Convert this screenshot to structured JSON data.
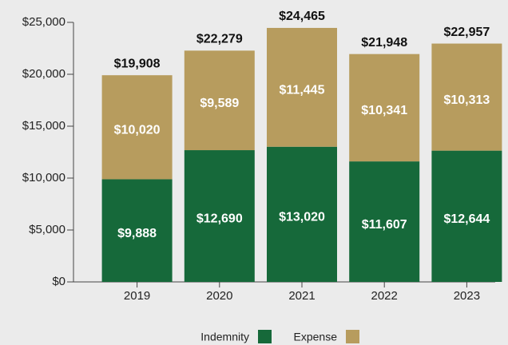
{
  "chart_data": {
    "type": "stacked_bar",
    "categories": [
      "2019",
      "2020",
      "2021",
      "2022",
      "2023"
    ],
    "series": [
      {
        "name": "Indemnity",
        "color": "#16693a",
        "values": [
          9888,
          12690,
          13020,
          11607,
          12644
        ],
        "value_labels": [
          "$9,888",
          "$12,690",
          "$13,020",
          "$11,607",
          "$12,644"
        ]
      },
      {
        "name": "Expense",
        "color": "#b79c5e",
        "values": [
          10020,
          9589,
          11445,
          10341,
          10313
        ],
        "value_labels": [
          "$10,020",
          "$9,589",
          "$11,445",
          "$10,341",
          "$10,313"
        ]
      }
    ],
    "totals": {
      "values": [
        19908,
        22279,
        24465,
        21948,
        22957
      ],
      "value_labels": [
        "$19,908",
        "$22,279",
        "$24,465",
        "$21,948",
        "$22,957"
      ]
    },
    "ylim": [
      0,
      25000
    ],
    "yticks": [
      {
        "value": 0,
        "label": "$0"
      },
      {
        "value": 5000,
        "label": "$5,000"
      },
      {
        "value": 10000,
        "label": "$10,000"
      },
      {
        "value": 15000,
        "label": "$15,000"
      },
      {
        "value": 20000,
        "label": "$20,000"
      },
      {
        "value": 25000,
        "label": "$25,000"
      }
    ],
    "legend": "bottom"
  }
}
